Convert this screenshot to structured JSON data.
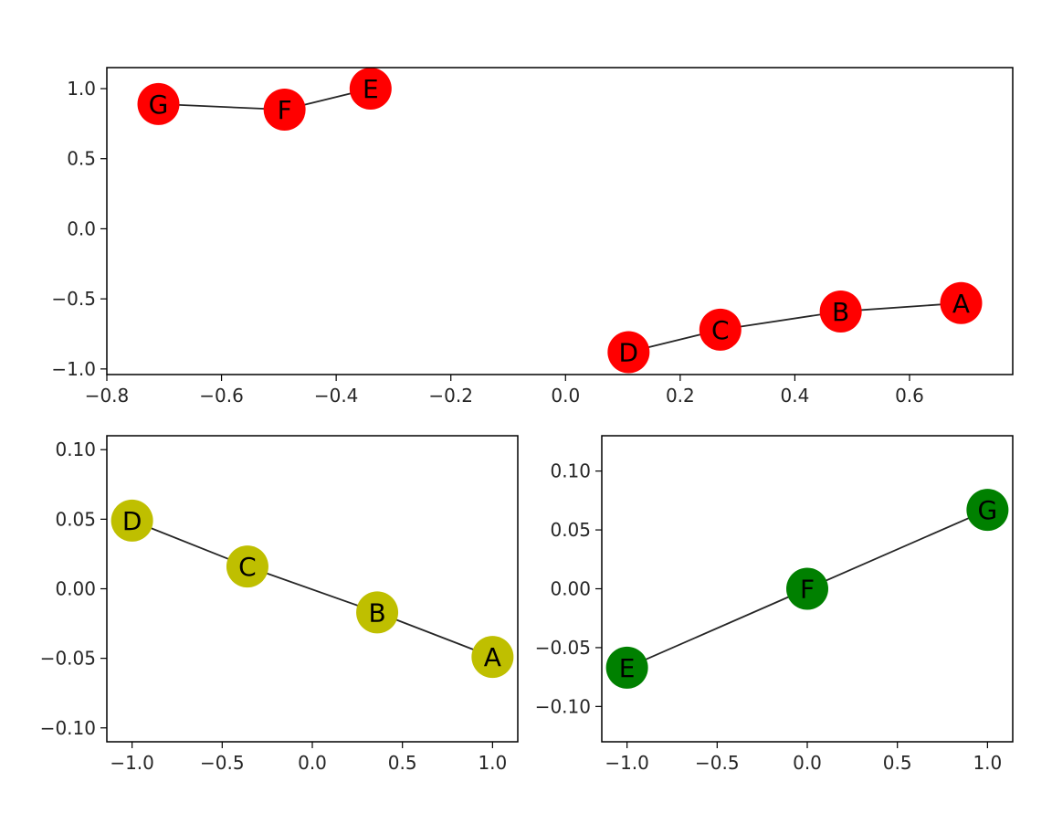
{
  "chart_data": [
    {
      "type": "scatter",
      "title": "",
      "xlabel": "",
      "ylabel": "",
      "xlim": [
        -0.8,
        0.78
      ],
      "ylim": [
        -1.04,
        1.15
      ],
      "xticks": [
        -0.8,
        -0.6,
        -0.4,
        -0.2,
        0.0,
        0.2,
        0.4,
        0.6
      ],
      "xtick_labels": [
        "−0.8",
        "−0.6",
        "−0.4",
        "−0.2",
        "0.0",
        "0.2",
        "0.4",
        "0.6"
      ],
      "yticks": [
        -1.0,
        -0.5,
        0.0,
        0.5,
        1.0
      ],
      "ytick_labels": [
        "−1.0",
        "−0.5",
        "0.0",
        "0.5",
        "1.0"
      ],
      "grid": false,
      "node_color": "#ff0000",
      "nodes": [
        {
          "label": "A",
          "x": 0.69,
          "y": -0.53
        },
        {
          "label": "B",
          "x": 0.48,
          "y": -0.59
        },
        {
          "label": "C",
          "x": 0.27,
          "y": -0.72
        },
        {
          "label": "D",
          "x": 0.11,
          "y": -0.88
        },
        {
          "label": "E",
          "x": -0.34,
          "y": 1.0
        },
        {
          "label": "F",
          "x": -0.49,
          "y": 0.85
        },
        {
          "label": "G",
          "x": -0.71,
          "y": 0.89
        }
      ],
      "edges": [
        [
          "A",
          "B"
        ],
        [
          "B",
          "C"
        ],
        [
          "C",
          "D"
        ],
        [
          "E",
          "F"
        ],
        [
          "F",
          "G"
        ]
      ]
    },
    {
      "type": "scatter",
      "title": "",
      "xlabel": "",
      "ylabel": "",
      "xlim": [
        -1.14,
        1.14
      ],
      "ylim": [
        -0.11,
        0.11
      ],
      "xticks": [
        -1.0,
        -0.5,
        0.0,
        0.5,
        1.0
      ],
      "xtick_labels": [
        "−1.0",
        "−0.5",
        "0.0",
        "0.5",
        "1.0"
      ],
      "yticks": [
        -0.1,
        -0.05,
        0.0,
        0.05,
        0.1
      ],
      "ytick_labels": [
        "−0.10",
        "−0.05",
        "0.00",
        "0.05",
        "0.10"
      ],
      "grid": false,
      "node_color": "#bfbf00",
      "nodes": [
        {
          "label": "D",
          "x": -1.0,
          "y": 0.049
        },
        {
          "label": "C",
          "x": -0.36,
          "y": 0.016
        },
        {
          "label": "B",
          "x": 0.36,
          "y": -0.017
        },
        {
          "label": "A",
          "x": 1.0,
          "y": -0.049
        }
      ],
      "edges": [
        [
          "D",
          "C"
        ],
        [
          "C",
          "B"
        ],
        [
          "B",
          "A"
        ]
      ]
    },
    {
      "type": "scatter",
      "title": "",
      "xlabel": "",
      "ylabel": "",
      "xlim": [
        -1.14,
        1.14
      ],
      "ylim": [
        -0.13,
        0.13
      ],
      "xticks": [
        -1.0,
        -0.5,
        0.0,
        0.5,
        1.0
      ],
      "xtick_labels": [
        "−1.0",
        "−0.5",
        "0.0",
        "0.5",
        "1.0"
      ],
      "yticks": [
        -0.1,
        -0.05,
        0.0,
        0.05,
        0.1
      ],
      "ytick_labels": [
        "−0.10",
        "−0.05",
        "0.00",
        "0.05",
        "0.10"
      ],
      "grid": false,
      "node_color": "#008000",
      "nodes": [
        {
          "label": "E",
          "x": -1.0,
          "y": -0.067
        },
        {
          "label": "F",
          "x": 0.0,
          "y": 0.0
        },
        {
          "label": "G",
          "x": 1.0,
          "y": 0.067
        }
      ],
      "edges": [
        [
          "E",
          "F"
        ],
        [
          "F",
          "G"
        ]
      ]
    }
  ]
}
